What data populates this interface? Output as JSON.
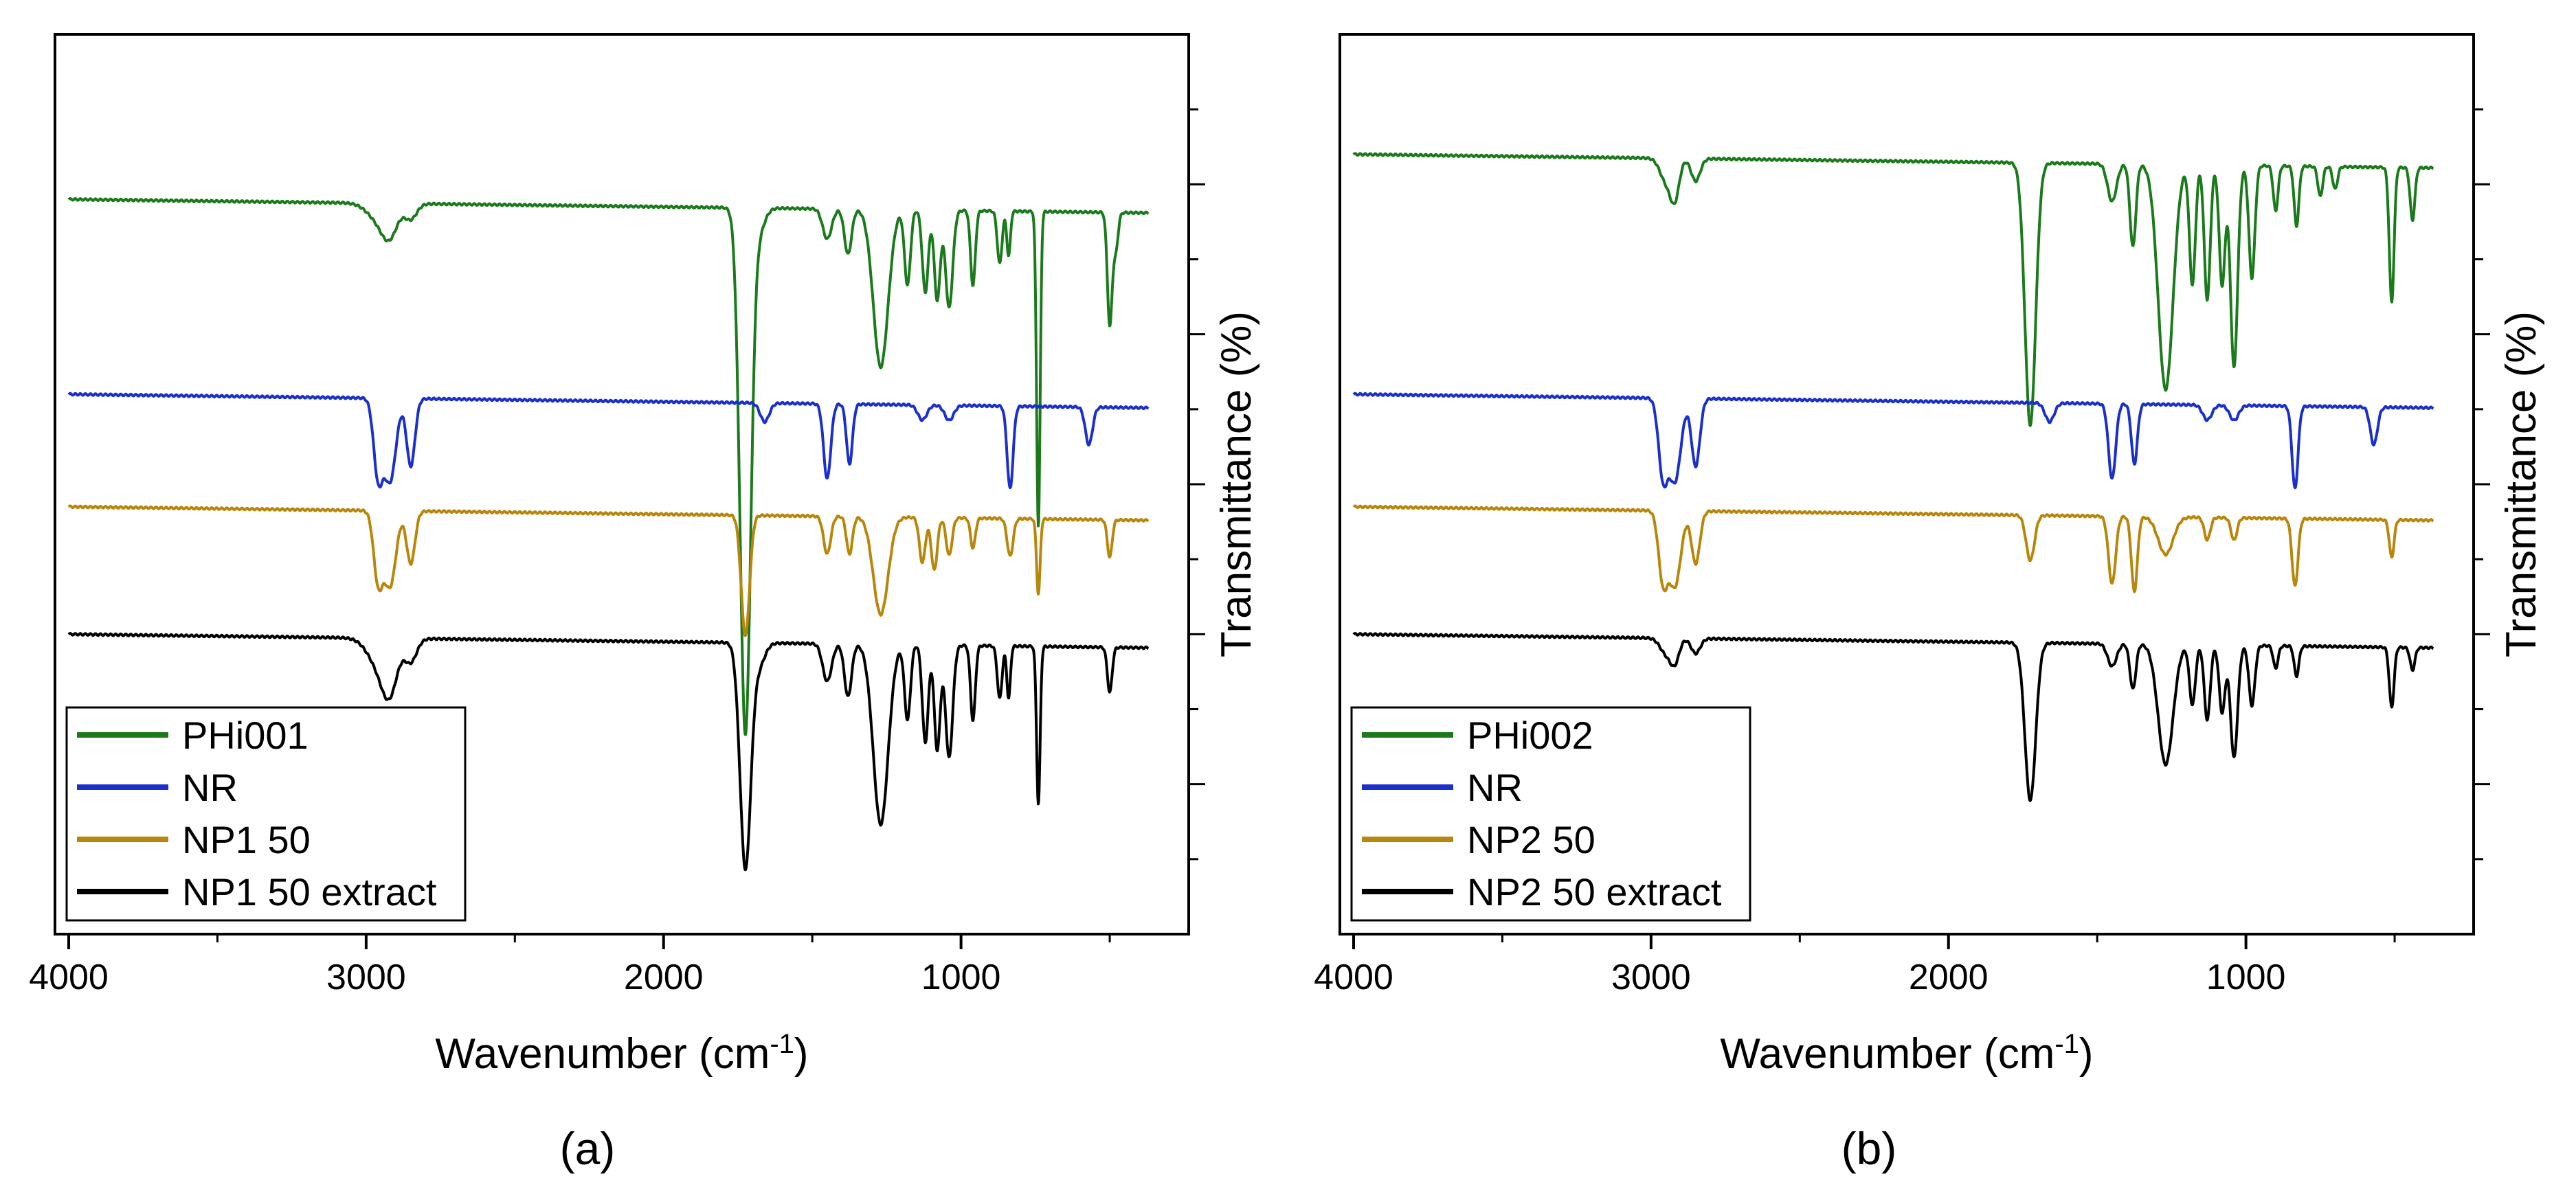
{
  "chart_data": [
    {
      "panel_label": "(a)",
      "type": "line",
      "xlabel_main": "Wavenumber (cm",
      "xlabel_sup": "-1",
      "xlabel_close": ")",
      "ylabel": "Transmittance (%)",
      "xlim": [
        4000,
        350
      ],
      "ylim": [
        0,
        12
      ],
      "x_ticks": [
        4000,
        3000,
        2000,
        1000
      ],
      "x_minor_ticks": [
        3500,
        2500,
        1500,
        500
      ],
      "y_right_ticks": [
        1,
        2,
        3,
        4,
        5,
        6,
        7,
        8,
        9,
        10,
        11
      ],
      "legend": {
        "position": "bottom-left"
      },
      "series": [
        {
          "name": "PHi001",
          "color": "#1b7a1b",
          "baseline": 9.75,
          "peaks": [
            [
              2950,
              0.25,
              40
            ],
            [
              2920,
              0.3,
              25
            ],
            [
              2850,
              0.2,
              20
            ],
            [
              1725,
              7.0,
              18
            ],
            [
              1680,
              0.3,
              20
            ],
            [
              1450,
              0.4,
              15
            ],
            [
              1380,
              0.6,
              12
            ],
            [
              1270,
              2.1,
              25
            ],
            [
              1180,
              1.0,
              10
            ],
            [
              1120,
              1.1,
              10
            ],
            [
              1080,
              1.2,
              10
            ],
            [
              1040,
              1.3,
              12
            ],
            [
              960,
              1.0,
              8
            ],
            [
              870,
              0.7,
              8
            ],
            [
              840,
              0.6,
              6
            ],
            [
              740,
              4.2,
              6
            ],
            [
              500,
              1.5,
              8
            ],
            [
              480,
              0.5,
              8
            ]
          ]
        },
        {
          "name": "NR",
          "color": "#1a2fcc",
          "baseline": 7.15,
          "peaks": [
            [
              2960,
              1.0,
              15
            ],
            [
              2920,
              1.1,
              20
            ],
            [
              2850,
              0.9,
              14
            ],
            [
              1660,
              0.25,
              15
            ],
            [
              1450,
              1.0,
              12
            ],
            [
              1375,
              0.8,
              10
            ],
            [
              1130,
              0.2,
              15
            ],
            [
              1040,
              0.2,
              15
            ],
            [
              835,
              1.1,
              10
            ],
            [
              570,
              0.5,
              12
            ]
          ]
        },
        {
          "name": "NP1 50",
          "color": "#b8860b",
          "baseline": 5.65,
          "peaks": [
            [
              2960,
              0.9,
              15
            ],
            [
              2920,
              1.0,
              20
            ],
            [
              2850,
              0.7,
              14
            ],
            [
              1725,
              1.6,
              14
            ],
            [
              1450,
              0.5,
              12
            ],
            [
              1375,
              0.5,
              10
            ],
            [
              1270,
              1.3,
              25
            ],
            [
              1130,
              0.6,
              10
            ],
            [
              1090,
              0.7,
              10
            ],
            [
              1040,
              0.5,
              10
            ],
            [
              960,
              0.4,
              8
            ],
            [
              835,
              0.5,
              10
            ],
            [
              740,
              1.0,
              6
            ],
            [
              500,
              0.5,
              8
            ]
          ]
        },
        {
          "name": "NP1 50 extract",
          "color": "#000000",
          "baseline": 3.95,
          "peaks": [
            [
              2950,
              0.4,
              40
            ],
            [
              2920,
              0.5,
              25
            ],
            [
              2850,
              0.3,
              20
            ],
            [
              1725,
              3.0,
              18
            ],
            [
              1680,
              0.3,
              20
            ],
            [
              1450,
              0.5,
              15
            ],
            [
              1380,
              0.7,
              12
            ],
            [
              1270,
              2.4,
              25
            ],
            [
              1180,
              1.0,
              10
            ],
            [
              1120,
              1.3,
              10
            ],
            [
              1080,
              1.4,
              10
            ],
            [
              1040,
              1.5,
              12
            ],
            [
              960,
              1.0,
              8
            ],
            [
              870,
              0.7,
              8
            ],
            [
              840,
              0.7,
              6
            ],
            [
              740,
              2.1,
              6
            ],
            [
              500,
              0.6,
              8
            ]
          ]
        }
      ]
    },
    {
      "panel_label": "(b)",
      "type": "line",
      "xlabel_main": "Wavenumber (cm",
      "xlabel_sup": "-1",
      "xlabel_close": ")",
      "ylabel": "Transmittance (%)",
      "xlim": [
        4000,
        350
      ],
      "ylim": [
        0,
        12
      ],
      "x_ticks": [
        4000,
        3000,
        2000,
        1000
      ],
      "x_minor_ticks": [
        3500,
        2500,
        1500,
        500
      ],
      "y_right_ticks": [
        1,
        2,
        3,
        4,
        5,
        6,
        7,
        8,
        9,
        10,
        11
      ],
      "legend": {
        "position": "bottom-left"
      },
      "series": [
        {
          "name": "PHi002",
          "color": "#1b7a1b",
          "baseline": 10.35,
          "peaks": [
            [
              2950,
              0.3,
              20
            ],
            [
              2920,
              0.5,
              15
            ],
            [
              2850,
              0.3,
              15
            ],
            [
              1725,
              3.5,
              18
            ],
            [
              1450,
              0.5,
              15
            ],
            [
              1380,
              1.1,
              10
            ],
            [
              1270,
              3.0,
              25
            ],
            [
              1180,
              1.6,
              10
            ],
            [
              1130,
              1.8,
              10
            ],
            [
              1080,
              1.6,
              10
            ],
            [
              1040,
              2.7,
              12
            ],
            [
              980,
              1.5,
              10
            ],
            [
              900,
              0.6,
              8
            ],
            [
              830,
              0.8,
              8
            ],
            [
              750,
              0.4,
              8
            ],
            [
              700,
              0.3,
              8
            ],
            [
              510,
              1.8,
              8
            ],
            [
              440,
              0.7,
              8
            ]
          ]
        },
        {
          "name": "NR",
          "color": "#1a2fcc",
          "baseline": 7.15,
          "peaks": [
            [
              2960,
              1.0,
              15
            ],
            [
              2920,
              1.1,
              20
            ],
            [
              2850,
              0.9,
              14
            ],
            [
              1660,
              0.25,
              15
            ],
            [
              1450,
              1.0,
              12
            ],
            [
              1375,
              0.8,
              10
            ],
            [
              1130,
              0.2,
              15
            ],
            [
              1040,
              0.2,
              15
            ],
            [
              835,
              1.1,
              10
            ],
            [
              570,
              0.5,
              12
            ]
          ]
        },
        {
          "name": "NP2 50",
          "color": "#b8860b",
          "baseline": 5.65,
          "peaks": [
            [
              2960,
              0.9,
              15
            ],
            [
              2920,
              1.0,
              20
            ],
            [
              2850,
              0.7,
              14
            ],
            [
              1725,
              0.6,
              14
            ],
            [
              1450,
              0.9,
              12
            ],
            [
              1375,
              1.0,
              10
            ],
            [
              1270,
              0.5,
              25
            ],
            [
              1130,
              0.3,
              10
            ],
            [
              1040,
              0.3,
              10
            ],
            [
              835,
              0.9,
              10
            ],
            [
              510,
              0.5,
              8
            ]
          ]
        },
        {
          "name": "NP2 50 extract",
          "color": "#000000",
          "baseline": 3.95,
          "peaks": [
            [
              2950,
              0.2,
              20
            ],
            [
              2920,
              0.3,
              15
            ],
            [
              2850,
              0.2,
              15
            ],
            [
              1725,
              2.1,
              18
            ],
            [
              1450,
              0.3,
              15
            ],
            [
              1380,
              0.6,
              10
            ],
            [
              1270,
              1.6,
              25
            ],
            [
              1180,
              0.8,
              10
            ],
            [
              1130,
              1.0,
              10
            ],
            [
              1080,
              0.9,
              10
            ],
            [
              1040,
              1.5,
              12
            ],
            [
              980,
              0.8,
              10
            ],
            [
              900,
              0.3,
              8
            ],
            [
              830,
              0.4,
              8
            ],
            [
              510,
              0.8,
              8
            ],
            [
              440,
              0.3,
              8
            ]
          ]
        }
      ]
    }
  ]
}
